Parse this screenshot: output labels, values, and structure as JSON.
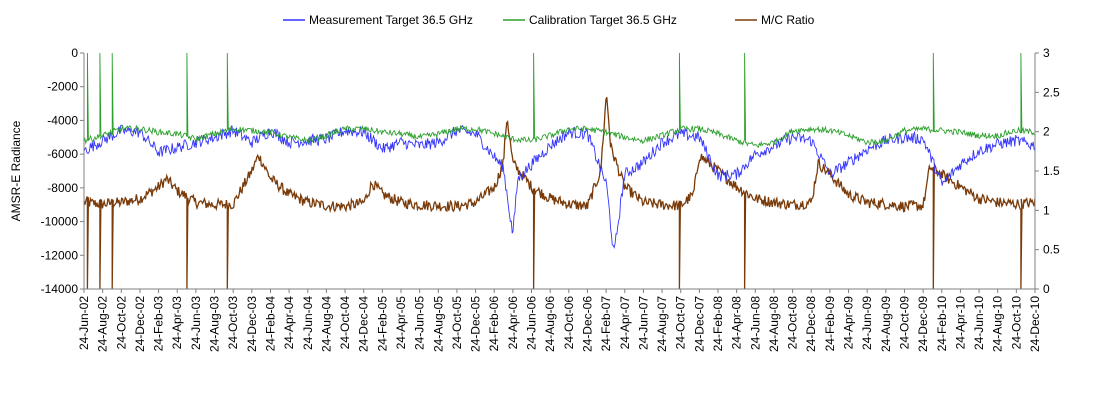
{
  "chart_data": {
    "type": "line",
    "title": "",
    "legend": {
      "placement": "top",
      "entries": [
        {
          "name": "Measurement Target 36.5 GHz",
          "color": "#3333ff"
        },
        {
          "name": "Calibration Target 36.5 GHz",
          "color": "#2ca02c"
        },
        {
          "name": "M/C Ratio",
          "color": "#7a3b0a"
        }
      ]
    },
    "xlabel": "",
    "ylabel": "AMSR-E Radiance",
    "y2label": "",
    "x_range": [
      "2002-06-24",
      "2010-12-24"
    ],
    "ylim": [
      -14000,
      0
    ],
    "y2lim": [
      0,
      3
    ],
    "y_ticks": [
      0,
      -2000,
      -4000,
      -6000,
      -8000,
      -10000,
      -12000,
      -14000
    ],
    "y2_ticks": [
      3,
      2.5,
      2,
      1.5,
      1,
      0.5,
      0
    ],
    "x_tick_labels": [
      "24-Jun-02",
      "24-Aug-02",
      "24-Oct-02",
      "24-Dec-02",
      "24-Feb-03",
      "24-Apr-03",
      "24-Jun-03",
      "24-Aug-03",
      "24-Oct-03",
      "24-Dec-03",
      "24-Feb-04",
      "24-Apr-04",
      "24-Jun-04",
      "24-Aug-04",
      "24-Oct-04",
      "24-Dec-04",
      "24-Feb-05",
      "24-Apr-05",
      "24-Jun-05",
      "24-Aug-05",
      "24-Oct-05",
      "24-Dec-05",
      "24-Feb-06",
      "24-Apr-06",
      "24-Jun-06",
      "24-Aug-06",
      "24-Oct-06",
      "24-Dec-06",
      "24-Feb-07",
      "24-Apr-07",
      "24-Jun-07",
      "24-Aug-07",
      "24-Oct-07",
      "24-Dec-07",
      "24-Feb-08",
      "24-Apr-08",
      "24-Jun-08",
      "24-Aug-08",
      "24-Oct-08",
      "24-Dec-08",
      "24-Feb-09",
      "24-Apr-09",
      "24-Jun-09",
      "24-Aug-09",
      "24-Oct-09",
      "24-Dec-09",
      "24-Feb-10",
      "24-Apr-10",
      "24-Jun-10",
      "24-Aug-10",
      "24-Oct-10",
      "24-Dec-10"
    ],
    "grid": false,
    "series": [
      {
        "name": "Measurement Target 36.5 GHz",
        "axis": "left",
        "x": [
          "2002-06-24",
          "2002-08-24",
          "2002-10-24",
          "2002-12-24",
          "2003-02-24",
          "2003-04-24",
          "2003-06-24",
          "2003-08-24",
          "2003-10-24",
          "2003-12-24",
          "2004-02-24",
          "2004-04-24",
          "2004-06-24",
          "2004-08-24",
          "2004-10-24",
          "2004-12-24",
          "2005-02-24",
          "2005-04-24",
          "2005-06-24",
          "2005-08-24",
          "2005-10-24",
          "2005-12-24",
          "2006-02-24",
          "2006-03-24",
          "2006-04-24",
          "2006-05-10",
          "2006-06-24",
          "2006-08-24",
          "2006-10-24",
          "2006-12-24",
          "2007-02-24",
          "2007-03-20",
          "2007-04-24",
          "2007-06-24",
          "2007-08-24",
          "2007-10-24",
          "2007-12-24",
          "2008-02-24",
          "2008-04-24",
          "2008-06-24",
          "2008-08-24",
          "2008-10-24",
          "2008-12-24",
          "2009-02-24",
          "2009-04-24",
          "2009-06-24",
          "2009-08-24",
          "2009-10-24",
          "2009-12-24",
          "2010-02-24",
          "2010-04-24",
          "2010-06-24",
          "2010-08-24",
          "2010-10-24",
          "2010-12-24"
        ],
        "values": [
          -5800,
          -5200,
          -4600,
          -4700,
          -5900,
          -5600,
          -5300,
          -5000,
          -4600,
          -5300,
          -4600,
          -5300,
          -5200,
          -5100,
          -4600,
          -4700,
          -5700,
          -5300,
          -5500,
          -5300,
          -4600,
          -4800,
          -6200,
          -6800,
          -10800,
          -7500,
          -6600,
          -5500,
          -4700,
          -4800,
          -7800,
          -12000,
          -7200,
          -6500,
          -5300,
          -4800,
          -5000,
          -7300,
          -7200,
          -6000,
          -5500,
          -5000,
          -5200,
          -7200,
          -6500,
          -5700,
          -5200,
          -5000,
          -5100,
          -7800,
          -6600,
          -5800,
          -5400,
          -5200,
          -5500
        ]
      },
      {
        "name": "Calibration Target 36.5 GHz",
        "axis": "left",
        "x": [
          "2002-06-24",
          "2002-08-24",
          "2002-10-24",
          "2002-12-24",
          "2003-02-24",
          "2003-04-24",
          "2003-06-24",
          "2003-08-24",
          "2003-10-24",
          "2003-12-24",
          "2004-02-24",
          "2004-04-24",
          "2004-06-24",
          "2004-08-24",
          "2004-10-24",
          "2004-12-24",
          "2005-02-24",
          "2005-04-24",
          "2005-06-24",
          "2005-08-24",
          "2005-10-24",
          "2005-12-24",
          "2006-02-24",
          "2006-04-24",
          "2006-06-24",
          "2006-08-24",
          "2006-10-24",
          "2006-12-24",
          "2007-02-24",
          "2007-04-24",
          "2007-06-24",
          "2007-08-24",
          "2007-10-24",
          "2007-12-24",
          "2008-02-24",
          "2008-04-24",
          "2008-06-24",
          "2008-08-24",
          "2008-10-24",
          "2008-12-24",
          "2009-02-24",
          "2009-04-24",
          "2009-06-24",
          "2009-08-24",
          "2009-10-24",
          "2009-12-24",
          "2010-02-24",
          "2010-04-24",
          "2010-06-24",
          "2010-08-24",
          "2010-10-24",
          "2010-12-24"
        ],
        "values": [
          -5200,
          -4900,
          -4500,
          -4500,
          -4700,
          -4800,
          -5100,
          -4800,
          -4500,
          -4600,
          -4700,
          -5000,
          -5200,
          -4900,
          -4500,
          -4500,
          -4700,
          -4800,
          -5000,
          -4800,
          -4500,
          -4500,
          -4800,
          -5100,
          -5200,
          -4900,
          -4500,
          -4500,
          -4700,
          -5000,
          -5200,
          -4900,
          -4500,
          -4500,
          -4800,
          -5200,
          -5500,
          -5300,
          -4600,
          -4500,
          -4600,
          -4900,
          -5300,
          -5200,
          -4600,
          -4500,
          -4600,
          -4700,
          -4900,
          -4900,
          -4600,
          -4700
        ],
        "spikes_to": 0,
        "spike_dates": [
          "2002-07-05",
          "2002-08-15",
          "2002-09-24",
          "2003-05-26",
          "2003-10-05",
          "2006-07-01",
          "2007-10-20",
          "2008-05-20",
          "2010-01-26",
          "2010-11-08"
        ]
      },
      {
        "name": "M/C Ratio",
        "axis": "right",
        "x": [
          "2002-06-24",
          "2002-08-24",
          "2002-10-24",
          "2002-12-24",
          "2003-02-24",
          "2003-03-20",
          "2003-04-24",
          "2003-06-24",
          "2003-08-24",
          "2003-10-24",
          "2003-12-24",
          "2004-01-15",
          "2004-02-24",
          "2004-04-24",
          "2004-06-24",
          "2004-08-24",
          "2004-10-24",
          "2004-12-24",
          "2005-01-20",
          "2005-02-24",
          "2005-04-24",
          "2005-06-24",
          "2005-08-24",
          "2005-10-24",
          "2005-12-24",
          "2006-02-24",
          "2006-03-24",
          "2006-04-05",
          "2006-04-24",
          "2006-06-24",
          "2006-08-24",
          "2006-10-24",
          "2006-12-24",
          "2007-02-05",
          "2007-02-24",
          "2007-03-10",
          "2007-04-24",
          "2007-06-24",
          "2007-08-24",
          "2007-10-24",
          "2007-12-05",
          "2007-12-24",
          "2008-02-24",
          "2008-04-24",
          "2008-06-24",
          "2008-08-24",
          "2008-10-24",
          "2008-12-24",
          "2009-01-15",
          "2009-02-24",
          "2009-04-24",
          "2009-06-24",
          "2009-08-24",
          "2009-10-24",
          "2009-12-24",
          "2010-01-15",
          "2010-02-24",
          "2010-04-24",
          "2010-06-24",
          "2010-08-24",
          "2010-10-24",
          "2010-12-24"
        ],
        "values": [
          1.1,
          1.08,
          1.1,
          1.15,
          1.3,
          1.4,
          1.25,
          1.1,
          1.07,
          1.08,
          1.5,
          1.7,
          1.4,
          1.2,
          1.1,
          1.06,
          1.05,
          1.1,
          1.35,
          1.2,
          1.1,
          1.07,
          1.06,
          1.05,
          1.1,
          1.3,
          1.6,
          2.2,
          1.6,
          1.3,
          1.15,
          1.08,
          1.05,
          1.5,
          2.5,
          1.8,
          1.3,
          1.1,
          1.07,
          1.06,
          1.2,
          1.7,
          1.5,
          1.3,
          1.15,
          1.1,
          1.07,
          1.1,
          1.6,
          1.45,
          1.2,
          1.1,
          1.08,
          1.05,
          1.06,
          1.55,
          1.45,
          1.3,
          1.15,
          1.1,
          1.08,
          1.1
        ],
        "spikes_to": 0,
        "spike_dates": [
          "2002-07-05",
          "2002-08-15",
          "2002-09-24",
          "2003-05-26",
          "2003-10-05",
          "2006-07-01",
          "2007-10-20",
          "2008-05-20",
          "2010-01-26",
          "2010-11-08"
        ]
      }
    ]
  }
}
